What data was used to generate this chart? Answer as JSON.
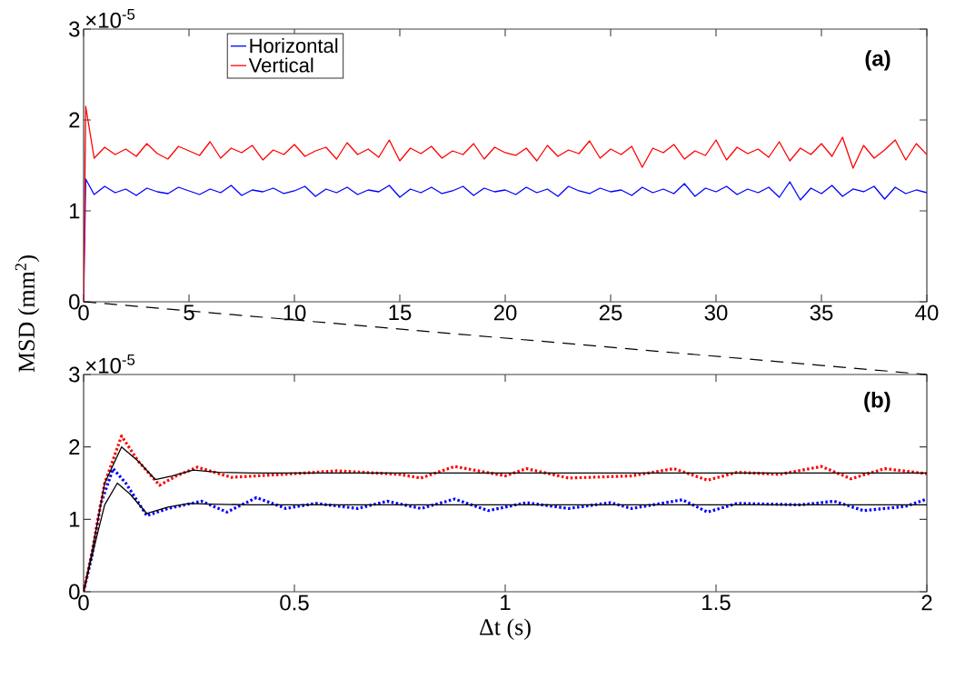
{
  "chart_data": [
    {
      "type": "line",
      "ylabel": "MSD (mm$^{2}$)",
      "annotations": [
        "×10$^{-5}$",
        "(a)"
      ],
      "xlim": [
        0,
        40
      ],
      "xticks": [
        0,
        5,
        10,
        15,
        20,
        25,
        30,
        35,
        40
      ],
      "ylim": [
        0,
        3
      ],
      "yticks": [
        0,
        1,
        2,
        3
      ],
      "legend": "top left",
      "series": [
        {
          "name": "Horizontal",
          "color": "#0000ff",
          "x": [
            0,
            0.1,
            0.5,
            1,
            1.5,
            2,
            2.5,
            3,
            3.5,
            4,
            4.5,
            5,
            5.5,
            6,
            6.5,
            7,
            7.5,
            8,
            8.5,
            9,
            9.5,
            10,
            10.5,
            11,
            11.5,
            12,
            12.5,
            13,
            13.5,
            14,
            14.5,
            15,
            15.5,
            16,
            16.5,
            17,
            17.5,
            18,
            18.5,
            19,
            19.5,
            20,
            20.5,
            21,
            21.5,
            22,
            22.5,
            23,
            23.5,
            24,
            24.5,
            25,
            25.5,
            26,
            26.5,
            27,
            27.5,
            28,
            28.5,
            29,
            29.5,
            30,
            30.5,
            31,
            31.5,
            32,
            32.5,
            33,
            33.5,
            34,
            34.5,
            35,
            35.5,
            36,
            36.5,
            37,
            37.5,
            38,
            38.5,
            39,
            39.5,
            40
          ],
          "values": [
            0,
            1.35,
            1.18,
            1.27,
            1.2,
            1.24,
            1.17,
            1.25,
            1.21,
            1.19,
            1.26,
            1.22,
            1.18,
            1.24,
            1.2,
            1.28,
            1.17,
            1.23,
            1.21,
            1.25,
            1.19,
            1.22,
            1.27,
            1.16,
            1.24,
            1.2,
            1.26,
            1.18,
            1.23,
            1.21,
            1.28,
            1.15,
            1.24,
            1.2,
            1.26,
            1.19,
            1.22,
            1.27,
            1.17,
            1.25,
            1.21,
            1.23,
            1.18,
            1.26,
            1.2,
            1.24,
            1.16,
            1.27,
            1.22,
            1.19,
            1.25,
            1.21,
            1.23,
            1.17,
            1.26,
            1.2,
            1.24,
            1.19,
            1.3,
            1.16,
            1.25,
            1.21,
            1.27,
            1.18,
            1.24,
            1.2,
            1.26,
            1.15,
            1.32,
            1.12,
            1.25,
            1.19,
            1.28,
            1.16,
            1.24,
            1.21,
            1.27,
            1.13,
            1.26,
            1.19,
            1.23,
            1.2
          ]
        },
        {
          "name": "Vertical",
          "color": "#ff0000",
          "x": [
            0,
            0.1,
            0.5,
            1,
            1.5,
            2,
            2.5,
            3,
            3.5,
            4,
            4.5,
            5,
            5.5,
            6,
            6.5,
            7,
            7.5,
            8,
            8.5,
            9,
            9.5,
            10,
            10.5,
            11,
            11.5,
            12,
            12.5,
            13,
            13.5,
            14,
            14.5,
            15,
            15.5,
            16,
            16.5,
            17,
            17.5,
            18,
            18.5,
            19,
            19.5,
            20,
            20.5,
            21,
            21.5,
            22,
            22.5,
            23,
            23.5,
            24,
            24.5,
            25,
            25.5,
            26,
            26.5,
            27,
            27.5,
            28,
            28.5,
            29,
            29.5,
            30,
            30.5,
            31,
            31.5,
            32,
            32.5,
            33,
            33.5,
            34,
            34.5,
            35,
            35.5,
            36,
            36.5,
            37,
            37.5,
            38,
            38.5,
            39,
            39.5,
            40
          ],
          "values": [
            0,
            2.15,
            1.58,
            1.7,
            1.62,
            1.68,
            1.6,
            1.74,
            1.63,
            1.57,
            1.71,
            1.66,
            1.61,
            1.76,
            1.58,
            1.69,
            1.64,
            1.72,
            1.56,
            1.67,
            1.62,
            1.73,
            1.6,
            1.66,
            1.7,
            1.57,
            1.75,
            1.62,
            1.68,
            1.59,
            1.78,
            1.55,
            1.69,
            1.63,
            1.71,
            1.58,
            1.66,
            1.62,
            1.74,
            1.57,
            1.7,
            1.64,
            1.61,
            1.69,
            1.55,
            1.72,
            1.6,
            1.67,
            1.63,
            1.77,
            1.58,
            1.68,
            1.62,
            1.71,
            1.48,
            1.69,
            1.64,
            1.73,
            1.57,
            1.66,
            1.61,
            1.78,
            1.56,
            1.7,
            1.63,
            1.68,
            1.59,
            1.76,
            1.55,
            1.69,
            1.62,
            1.74,
            1.6,
            1.81,
            1.47,
            1.72,
            1.58,
            1.67,
            1.78,
            1.56,
            1.74,
            1.62
          ]
        }
      ]
    },
    {
      "type": "line",
      "xlabel": "Δt (s)",
      "annotations": [
        "×10$^{-5}$",
        "(b)"
      ],
      "xlim": [
        0,
        2
      ],
      "xticks": [
        0,
        0.5,
        1,
        1.5,
        2
      ],
      "ylim": [
        0,
        3
      ],
      "yticks": [
        0,
        1,
        2,
        3
      ],
      "series": [
        {
          "color": "#0000ff",
          "line_style": "dotted",
          "x": [
            0,
            0.02,
            0.04,
            0.07,
            0.1,
            0.15,
            0.2,
            0.28,
            0.34,
            0.41,
            0.48,
            0.55,
            0.65,
            0.72,
            0.8,
            0.88,
            0.96,
            1.05,
            1.15,
            1.25,
            1.3,
            1.42,
            1.48,
            1.55,
            1.7,
            1.78,
            1.85,
            1.95,
            2
          ],
          "values": [
            0,
            0.5,
            1.2,
            1.7,
            1.5,
            1.05,
            1.15,
            1.25,
            1.1,
            1.3,
            1.15,
            1.22,
            1.15,
            1.25,
            1.15,
            1.28,
            1.12,
            1.23,
            1.15,
            1.23,
            1.15,
            1.27,
            1.1,
            1.22,
            1.2,
            1.25,
            1.12,
            1.18,
            1.28
          ]
        },
        {
          "color": "#ff0000",
          "line_style": "dotted",
          "x": [
            0,
            0.02,
            0.05,
            0.09,
            0.13,
            0.18,
            0.22,
            0.27,
            0.35,
            0.5,
            0.6,
            0.75,
            0.8,
            0.88,
            1,
            1.05,
            1.15,
            1.3,
            1.4,
            1.48,
            1.55,
            1.65,
            1.75,
            1.82,
            1.9,
            2
          ],
          "values": [
            0,
            0.55,
            1.5,
            2.15,
            1.8,
            1.47,
            1.6,
            1.72,
            1.58,
            1.63,
            1.67,
            1.62,
            1.57,
            1.73,
            1.6,
            1.7,
            1.57,
            1.6,
            1.7,
            1.54,
            1.65,
            1.62,
            1.73,
            1.56,
            1.7,
            1.63
          ]
        },
        {
          "color": "#000000",
          "line_style": "solid",
          "x": [
            0,
            0.02,
            0.05,
            0.08,
            0.11,
            0.15,
            0.2,
            0.25,
            0.3,
            0.4,
            2
          ],
          "values": [
            0,
            0.5,
            1.2,
            1.5,
            1.35,
            1.08,
            1.17,
            1.22,
            1.21,
            1.2,
            1.2
          ]
        },
        {
          "color": "#000000",
          "line_style": "solid",
          "x": [
            0,
            0.02,
            0.05,
            0.09,
            0.13,
            0.17,
            0.21,
            0.26,
            0.32,
            0.4,
            2
          ],
          "values": [
            0,
            0.55,
            1.5,
            2.0,
            1.8,
            1.55,
            1.6,
            1.68,
            1.65,
            1.64,
            1.64
          ]
        }
      ]
    }
  ]
}
